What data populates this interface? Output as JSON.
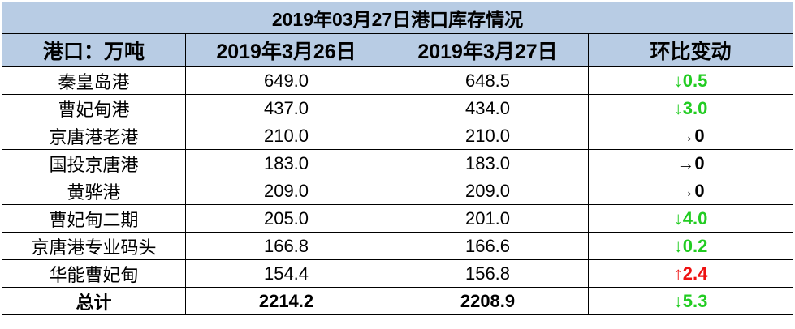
{
  "table": {
    "title": "2019年03月27日港口库存情况",
    "columns": [
      "港口：万吨",
      "2019年3月26日",
      "2019年3月27日",
      "环比变动"
    ],
    "rows": [
      [
        "秦皇岛港",
        "649.0",
        "648.5",
        "↓0.5"
      ],
      [
        "曹妃甸港",
        "437.0",
        "434.0",
        "↓3.0"
      ],
      [
        "京唐港老港",
        "210.0",
        "210.0",
        "→0"
      ],
      [
        "国投京唐港",
        "183.0",
        "183.0",
        "→0"
      ],
      [
        "黄骅港",
        "209.0",
        "209.0",
        "→0"
      ],
      [
        "曹妃甸二期",
        "205.0",
        "201.0",
        "↓4.0"
      ],
      [
        "京唐港专业码头",
        "166.8",
        "166.6",
        "↓0.2"
      ],
      [
        "华能曹妃甸",
        "154.4",
        "156.8",
        "↑2.4"
      ],
      [
        "总计",
        "2214.2",
        "2208.9",
        "↓5.3"
      ]
    ],
    "change_colors": [
      "#22cc22",
      "#22cc22",
      "#000000",
      "#000000",
      "#000000",
      "#22cc22",
      "#22cc22",
      "#ee1111",
      "#22cc22"
    ]
  }
}
